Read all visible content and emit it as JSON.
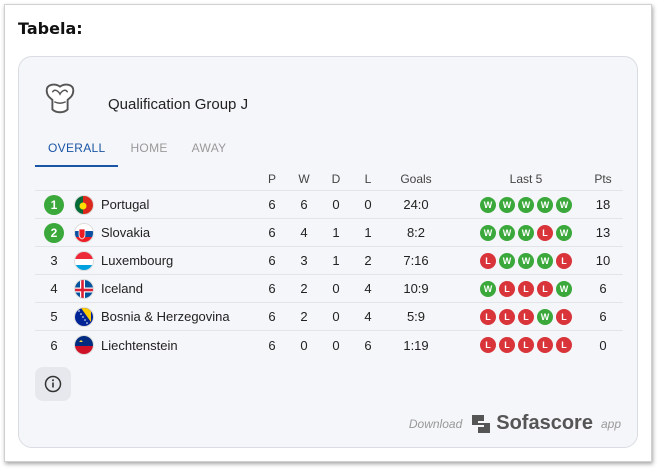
{
  "heading": "Tabela:",
  "group": {
    "title": "Qualification Group J",
    "logo_icon": "euro-qualifiers-trophy-icon"
  },
  "tabs": [
    {
      "label": "OVERALL",
      "active": true
    },
    {
      "label": "HOME",
      "active": false
    },
    {
      "label": "AWAY",
      "active": false
    }
  ],
  "columns": {
    "p": "P",
    "w": "W",
    "d": "D",
    "l": "L",
    "goals": "Goals",
    "last5": "Last 5",
    "pts": "Pts"
  },
  "rows": [
    {
      "rank": "1",
      "highlight": true,
      "team": "Portugal",
      "flag": "portugal-flag-icon",
      "p": "6",
      "w": "6",
      "d": "0",
      "l": "0",
      "goals": "24:0",
      "form": [
        "W",
        "W",
        "W",
        "W",
        "W"
      ],
      "pts": "18"
    },
    {
      "rank": "2",
      "highlight": true,
      "team": "Slovakia",
      "flag": "slovakia-flag-icon",
      "p": "6",
      "w": "4",
      "d": "1",
      "l": "1",
      "goals": "8:2",
      "form": [
        "W",
        "W",
        "W",
        "L",
        "W"
      ],
      "pts": "13"
    },
    {
      "rank": "3",
      "highlight": false,
      "team": "Luxembourg",
      "flag": "luxembourg-flag-icon",
      "p": "6",
      "w": "3",
      "d": "1",
      "l": "2",
      "goals": "7:16",
      "form": [
        "L",
        "W",
        "W",
        "W",
        "L"
      ],
      "pts": "10"
    },
    {
      "rank": "4",
      "highlight": false,
      "team": "Iceland",
      "flag": "iceland-flag-icon",
      "p": "6",
      "w": "2",
      "d": "0",
      "l": "4",
      "goals": "10:9",
      "form": [
        "W",
        "L",
        "L",
        "L",
        "W"
      ],
      "pts": "6"
    },
    {
      "rank": "5",
      "highlight": false,
      "team": "Bosnia & Herzegovina",
      "flag": "bosnia-flag-icon",
      "p": "6",
      "w": "2",
      "d": "0",
      "l": "4",
      "goals": "5:9",
      "form": [
        "L",
        "L",
        "L",
        "W",
        "L"
      ],
      "pts": "6"
    },
    {
      "rank": "6",
      "highlight": false,
      "team": "Liechtenstein",
      "flag": "liechtenstein-flag-icon",
      "p": "6",
      "w": "0",
      "d": "0",
      "l": "6",
      "goals": "1:19",
      "form": [
        "L",
        "L",
        "L",
        "L",
        "L"
      ],
      "pts": "0"
    }
  ],
  "footer": {
    "download": "Download",
    "brand": "Sofascore",
    "app": "app"
  },
  "colors": {
    "win": "#3aa83a",
    "loss": "#d8343a",
    "accent": "#1a56a6",
    "card_bg": "#f5f6f9"
  }
}
